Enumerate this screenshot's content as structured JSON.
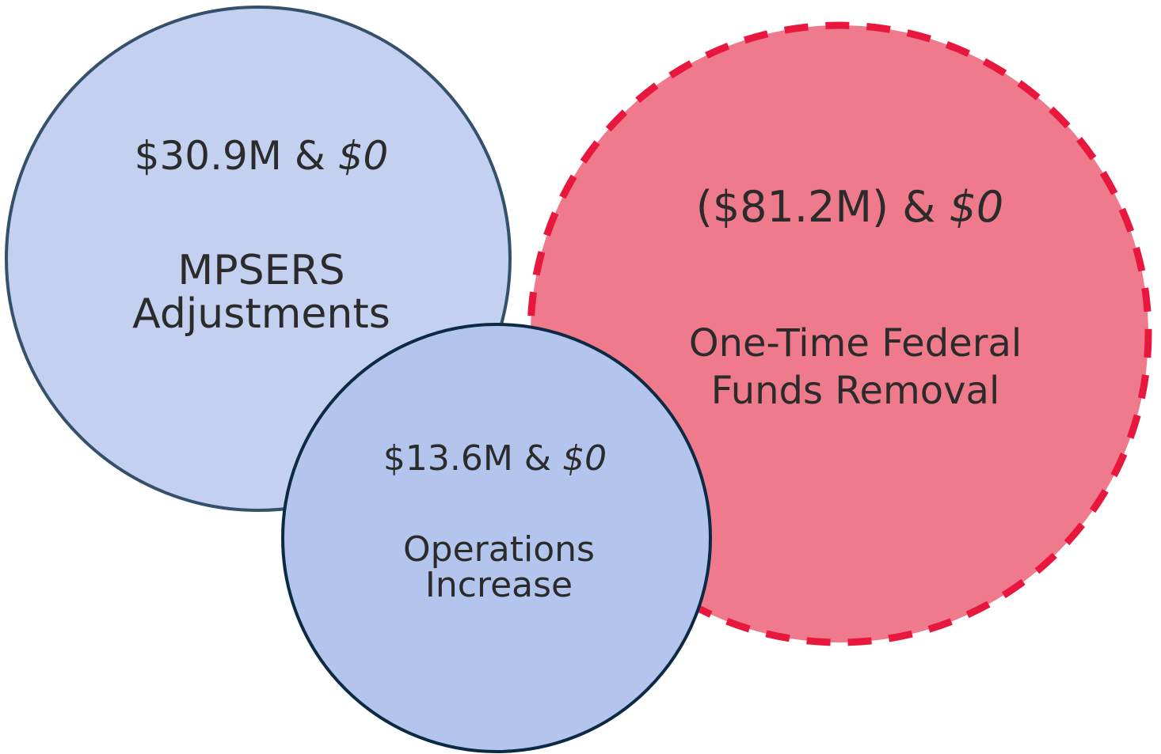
{
  "nodes": [
    {
      "amount": "$30.9M &",
      "alt_amount": "$0",
      "label": [
        "MPSERS",
        "Adjustments"
      ]
    },
    {
      "amount": "($81.2M) &",
      "alt_amount": "$0",
      "label": [
        "One-Time Federal",
        "Funds Removal"
      ]
    },
    {
      "amount": "$13.6M &",
      "alt_amount": "$0",
      "label": [
        "Operations",
        "Increase"
      ]
    }
  ]
}
